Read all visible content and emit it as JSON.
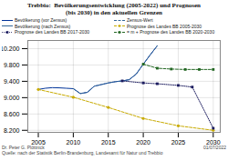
{
  "chart_data": {
    "type": "line",
    "title": "Trebbio:  Bevölkerungsentwicklung (2005-2022) und Prognosen",
    "subtitle": "(bis 2030) in den aktuellen Grenzen",
    "xlim": [
      2003.5,
      2031
    ],
    "ylim": [
      8150,
      10400
    ],
    "xticks": [
      2005,
      2010,
      2015,
      2020,
      2025,
      2030
    ],
    "yticks": [
      {
        "value": 8200,
        "label": "8.200"
      },
      {
        "value": 8600,
        "label": "8.600"
      },
      {
        "value": 9000,
        "label": "9.000"
      },
      {
        "value": 9400,
        "label": "9.400"
      },
      {
        "value": 9800,
        "label": "9.800"
      },
      {
        "value": 10200,
        "label": "10.200"
      }
    ],
    "grid": true,
    "legend": "top",
    "series": [
      {
        "name": "Bevölkerung (vor Zensus)",
        "color": "#003399",
        "line_style": "solid",
        "x": [
          2005,
          2006,
          2007,
          2008,
          2009,
          2010,
          2011,
          2012,
          2013,
          2014,
          2015,
          2016,
          2017,
          2018,
          2019,
          2020,
          2021,
          2022
        ],
        "values": [
          9200,
          9230,
          9245,
          9240,
          9230,
          9220,
          9100,
          9130,
          9280,
          9320,
          9360,
          9390,
          9410,
          9440,
          9580,
          9820,
          10050,
          10270
        ]
      },
      {
        "name": "Zensus-Wert",
        "color": "#336699",
        "line_style": "dashed",
        "x": [
          2010,
          2011,
          2012,
          2013,
          2014,
          2015,
          2016,
          2017,
          2018,
          2019,
          2020,
          2021,
          2022
        ],
        "values": [
          9220,
          9100,
          9130,
          9280,
          9320,
          9360,
          9390,
          9410,
          9440,
          9580,
          9820,
          10050,
          10270
        ]
      },
      {
        "name": "Bevölkerung (nach Zensus)",
        "color": "#336699",
        "line_style": "solid",
        "x": [],
        "values": []
      },
      {
        "name": "Prognose des Landes BB 2005-2030",
        "color": "#c8aa00",
        "line_style": "dashed",
        "marker": "circle",
        "x": [
          2005,
          2010,
          2015,
          2020,
          2025,
          2030
        ],
        "values": [
          9200,
          9010,
          8760,
          8490,
          8310,
          8200
        ]
      },
      {
        "name": "Prognose des Landes BB 2017-2030",
        "color": "#1a1a5e",
        "line_style": "dotted",
        "marker": "square",
        "x": [
          2017,
          2020,
          2022,
          2025,
          2027,
          2030
        ],
        "values": [
          9410,
          9360,
          9340,
          9300,
          9260,
          8250
        ]
      },
      {
        "name": "= m + Prognose des Landes BB 2020-2030",
        "color": "#226622",
        "line_style": "dashed",
        "marker": "square",
        "x": [
          2020,
          2022,
          2024,
          2026,
          2028,
          2030
        ],
        "values": [
          9820,
          9720,
          9700,
          9690,
          9690,
          9690
        ]
      }
    ],
    "annotations": [
      "Dr. Peter G. Plöttnick",
      "01/07/2022",
      "Quelle: nach der Statistik Berlin-Brandenburg, Landesamt für Natur und Trebbio"
    ]
  }
}
